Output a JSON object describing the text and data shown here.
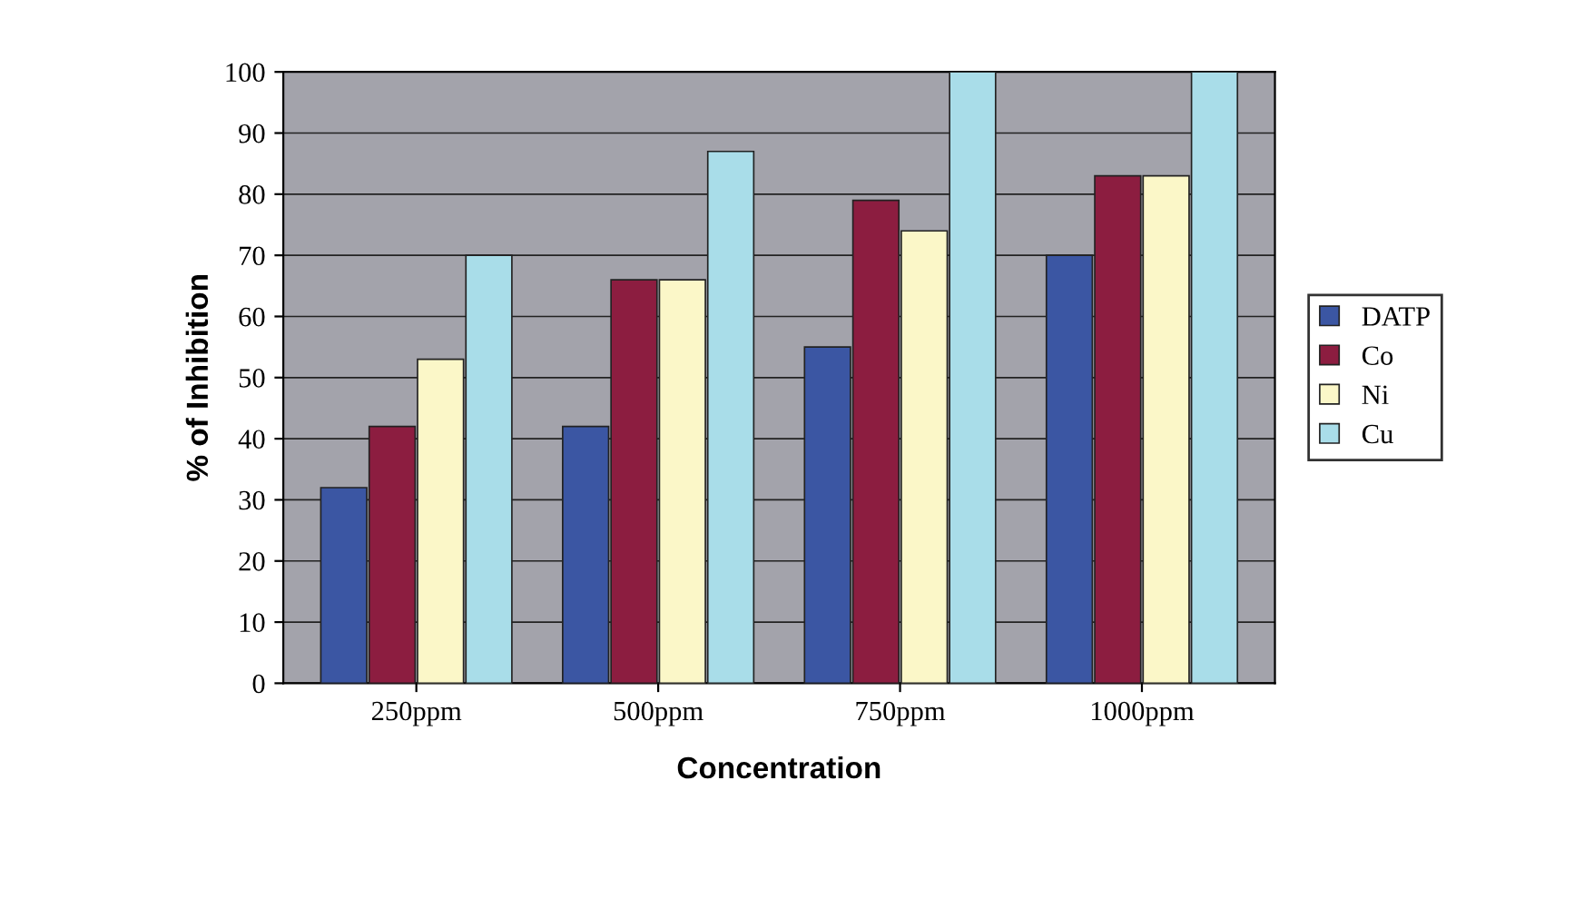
{
  "chart_data": {
    "type": "bar",
    "xlabel": "Concentration",
    "ylabel": "% of Inhibition",
    "categories": [
      "250ppm",
      "500ppm",
      "750ppm",
      "1000ppm"
    ],
    "series": [
      {
        "name": "DATP",
        "color": "#3b56a3",
        "values": [
          32,
          42,
          55,
          70
        ]
      },
      {
        "name": "Co",
        "color": "#8c1d40",
        "values": [
          42,
          66,
          79,
          83
        ]
      },
      {
        "name": "Ni",
        "color": "#fbf7c8",
        "values": [
          53,
          66,
          74,
          83
        ]
      },
      {
        "name": "Cu",
        "color": "#a9dde9",
        "values": [
          70,
          87,
          100,
          100
        ]
      }
    ],
    "ylim": [
      0,
      100
    ],
    "yticks": [
      0,
      10,
      20,
      30,
      40,
      50,
      60,
      70,
      80,
      90,
      100
    ],
    "grid": "y",
    "legend": "right"
  }
}
